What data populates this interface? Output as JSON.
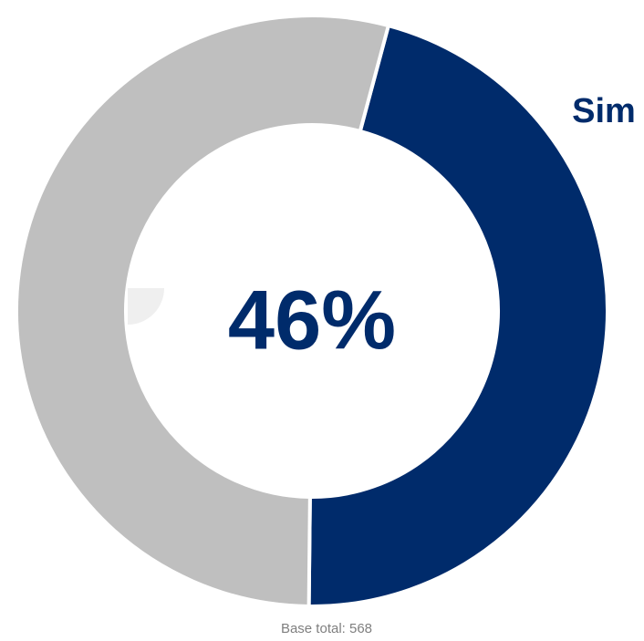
{
  "chart_data": {
    "type": "pie",
    "variant": "donut",
    "categories": [
      "Sim",
      ""
    ],
    "values": [
      46,
      54
    ],
    "unit": "%",
    "colors": [
      "#002b6b",
      "#bfbfbf"
    ],
    "center_label": "46%",
    "labels": [
      {
        "text": "Sim",
        "color": "#002b6b"
      }
    ],
    "base_label": "Base total: 568",
    "start_angle_deg": 15,
    "direction": "clockwise",
    "legend": "none"
  }
}
